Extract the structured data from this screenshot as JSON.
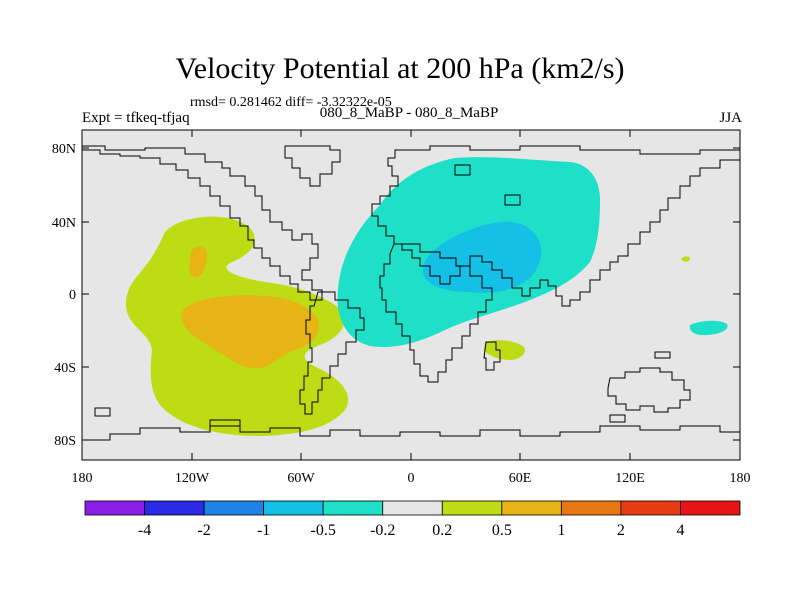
{
  "title": "Velocity Potential at 200 hPa (km2/s)",
  "stats_line": "rmsd= 0.281462 diff= -3.32322e-05",
  "experiment_label": "Expt = tfkeq-tfjaq",
  "comparison_label": "080_8_MaBP - 080_8_MaBP",
  "season_label": "JJA",
  "lat_ticks": [
    "80N",
    "40N",
    "0",
    "40S",
    "80S"
  ],
  "lon_ticks": [
    "180",
    "120W",
    "60W",
    "0",
    "60E",
    "120E",
    "180"
  ],
  "colorbar": {
    "labels": [
      "-4",
      "-2",
      "-1",
      "-0.5",
      "-0.2",
      "0.2",
      "0.5",
      "1",
      "2",
      "4"
    ],
    "colors": [
      "#8a1ee6",
      "#2a2ae6",
      "#1e82e6",
      "#14c0e6",
      "#1ee0c8",
      "#e6e6e6",
      "#bedc14",
      "#e6b414",
      "#e67814",
      "#e63c14",
      "#e61414"
    ]
  },
  "colors": {
    "land_background": "#e6e6e6",
    "negative_weak": "#1ee0c8",
    "negative_moderate": "#14c0e6",
    "positive_weak": "#bedc14",
    "positive_moderate": "#e6b414"
  }
}
